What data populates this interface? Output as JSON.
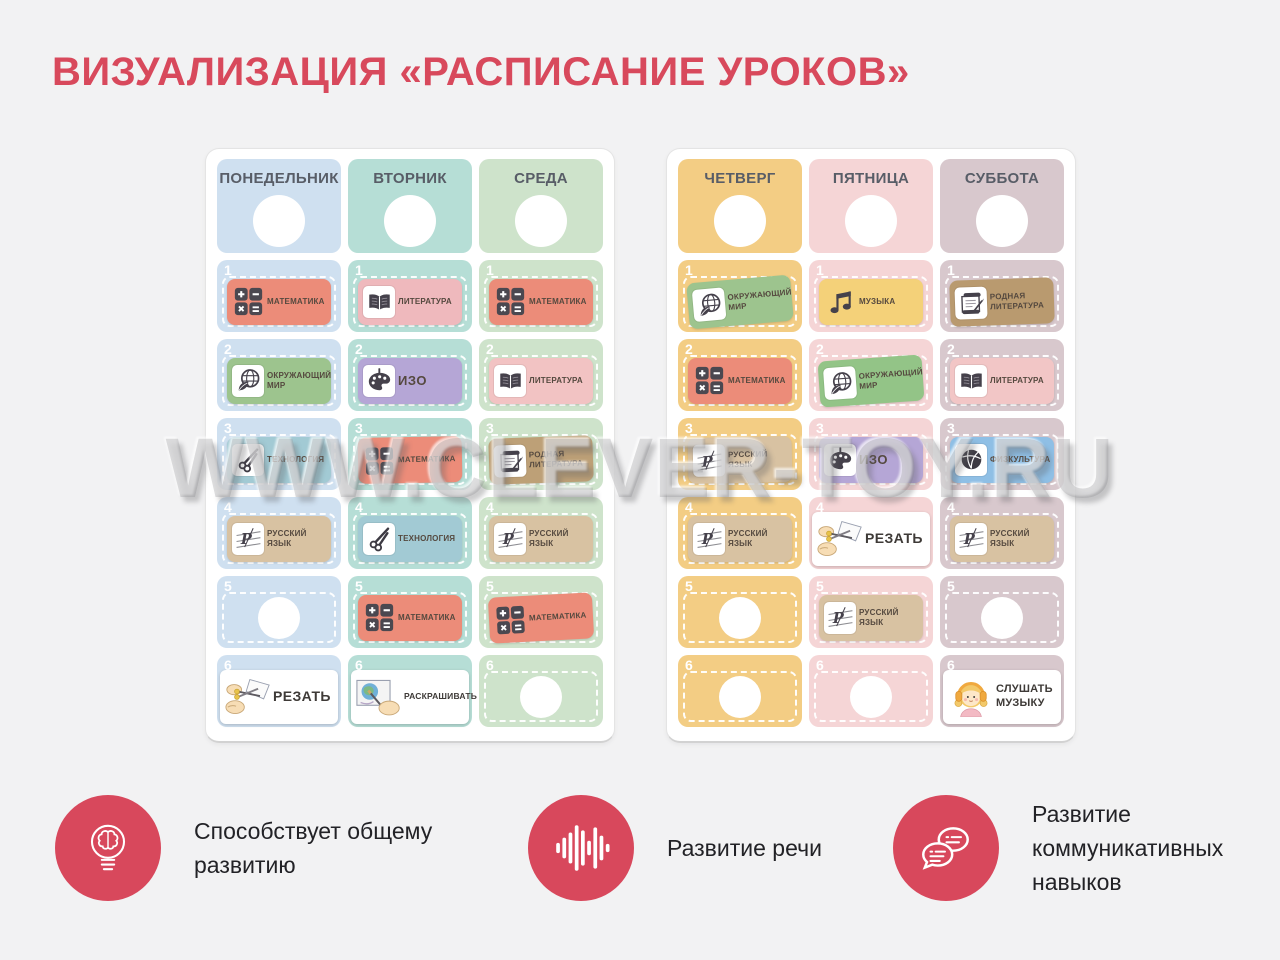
{
  "title": "ВИЗУАЛИЗАЦИЯ «РАСПИСАНИЕ УРОКОВ»",
  "watermark": "WWW.CLEVER-TOY.RU",
  "colors": {
    "accent_red": "#d8495c",
    "background": "#f2f2f3",
    "panel": "#ffffff"
  },
  "panels": [
    {
      "days": [
        {
          "name": "ПОНЕДЕЛЬНИК",
          "color": "#cfe0f0",
          "slots": [
            {
              "n": "1",
              "type": "subject",
              "label": "МАТЕМАТИКА",
              "icon": "calculator-icon",
              "color": "#ec8c79"
            },
            {
              "n": "2",
              "type": "subject",
              "label": "ОКРУЖАЮЩИЙ МИР",
              "icon": "globe-leaf-icon",
              "color": "#9dc48e"
            },
            {
              "n": "3",
              "type": "subject",
              "label": "ТЕХНОЛОГИЯ",
              "icon": "scissors-icon",
              "color": "#a2cad4"
            },
            {
              "n": "4",
              "type": "subject",
              "label": "РУССКИЙ ЯЗЫК",
              "icon": "writing-icon",
              "color": "#d8c2a2"
            },
            {
              "n": "5",
              "type": "empty"
            },
            {
              "n": "6",
              "type": "activity",
              "label": "РЕЗАТЬ",
              "icon": "cutting-hands-icon"
            }
          ]
        },
        {
          "name": "ВТОРНИК",
          "color": "#b6ded6",
          "slots": [
            {
              "n": "1",
              "type": "subject",
              "label": "ЛИТЕРАТУРА",
              "icon": "book-icon",
              "color": "#efb9bd"
            },
            {
              "n": "2",
              "type": "subject",
              "label": "ИЗО",
              "icon": "palette-icon",
              "color": "#b5a6d6"
            },
            {
              "n": "3",
              "type": "subject",
              "label": "МАТЕМАТИКА",
              "icon": "calculator-icon",
              "color": "#ec8c79",
              "tilt": -1
            },
            {
              "n": "4",
              "type": "subject",
              "label": "ТЕХНОЛОГИЯ",
              "icon": "scissors-icon",
              "color": "#a2cad4"
            },
            {
              "n": "5",
              "type": "subject",
              "label": "МАТЕМАТИКА",
              "icon": "calculator-icon",
              "color": "#ec8c79"
            },
            {
              "n": "6",
              "type": "activity",
              "label": "РАСКРАШИВАТЬ",
              "icon": "coloring-hand-icon"
            }
          ]
        },
        {
          "name": "СРЕДА",
          "color": "#cee3cb",
          "slots": [
            {
              "n": "1",
              "type": "subject",
              "label": "МАТЕМАТИКА",
              "icon": "calculator-icon",
              "color": "#ec8c79"
            },
            {
              "n": "2",
              "type": "subject",
              "label": "ЛИТЕРАТУРА",
              "icon": "book-icon",
              "color": "#f2c3c3"
            },
            {
              "n": "3",
              "type": "subject",
              "label": "РОДНАЯ ЛИТЕРАТУРА",
              "icon": "scroll-pen-icon",
              "color": "#bda077",
              "tilt": -2
            },
            {
              "n": "4",
              "type": "subject",
              "label": "РУССКИЙ ЯЗЫК",
              "icon": "writing-icon",
              "color": "#d8c2a2"
            },
            {
              "n": "5",
              "type": "subject",
              "label": "МАТЕМАТИКА",
              "icon": "calculator-icon",
              "color": "#ec8c79",
              "tilt": -3
            },
            {
              "n": "6",
              "type": "empty"
            }
          ]
        }
      ]
    },
    {
      "days": [
        {
          "name": "ЧЕТВЕРГ",
          "color": "#f3cd84",
          "slots": [
            {
              "n": "1",
              "type": "subject",
              "label": "ОКРУЖАЮЩИЙ МИР",
              "icon": "globe-leaf-icon",
              "color": "#9dc48e",
              "tilt": -5
            },
            {
              "n": "2",
              "type": "subject",
              "label": "МАТЕМАТИКА",
              "icon": "calculator-icon",
              "color": "#ec8c79"
            },
            {
              "n": "3",
              "type": "subject",
              "label": "РУССКИЙ ЯЗЫК",
              "icon": "writing-icon",
              "color": "#d8c2a2",
              "tilt": -1
            },
            {
              "n": "4",
              "type": "subject",
              "label": "РУССКИЙ ЯЗЫК",
              "icon": "writing-icon",
              "color": "#d8c2a2"
            },
            {
              "n": "5",
              "type": "empty"
            },
            {
              "n": "6",
              "type": "empty"
            }
          ]
        },
        {
          "name": "ПЯТНИЦА",
          "color": "#f5d5d6",
          "slots": [
            {
              "n": "1",
              "type": "subject",
              "label": "МУЗЫКА",
              "icon": "music-note-icon",
              "color": "#f4d179"
            },
            {
              "n": "2",
              "type": "subject",
              "label": "ОКРУЖАЮЩИЙ МИР",
              "icon": "globe-leaf-icon",
              "color": "#93c487",
              "tilt": -4
            },
            {
              "n": "3",
              "type": "subject",
              "label": "ИЗО",
              "icon": "palette-icon",
              "color": "#b5a6d6"
            },
            {
              "n": "4",
              "type": "activity",
              "label": "РЕЗАТЬ",
              "icon": "cutting-hands-icon"
            },
            {
              "n": "5",
              "type": "subject",
              "label": "РУССКИЙ ЯЗЫК",
              "icon": "writing-icon",
              "color": "#d8c2a2"
            },
            {
              "n": "6",
              "type": "empty"
            }
          ]
        },
        {
          "name": "СУББОТА",
          "color": "#d8c8cd",
          "slots": [
            {
              "n": "1",
              "type": "subject",
              "label": "РОДНАЯ ЛИТЕРАТУРА",
              "icon": "scroll-pen-icon",
              "color": "#b99a6f",
              "tilt": -2
            },
            {
              "n": "2",
              "type": "subject",
              "label": "ЛИТЕРАТУРА",
              "icon": "book-icon",
              "color": "#f2c6c6"
            },
            {
              "n": "3",
              "type": "subject",
              "label": "ФИЗКУЛЬТУРА",
              "icon": "volleyball-icon",
              "color": "#8fbfe5"
            },
            {
              "n": "4",
              "type": "subject",
              "label": "РУССКИЙ ЯЗЫК",
              "icon": "writing-icon",
              "color": "#d8c2a2"
            },
            {
              "n": "5",
              "type": "empty"
            },
            {
              "n": "6",
              "type": "activity",
              "label": "СЛУШАТЬ МУЗЫКУ",
              "icon": "girl-headphones-icon"
            }
          ]
        }
      ]
    }
  ],
  "features": [
    {
      "icon": "bulb-brain-icon",
      "label": "Способствует общему развитию"
    },
    {
      "icon": "sound-wave-icon",
      "label": "Развитие речи"
    },
    {
      "icon": "chat-bubbles-icon",
      "label": "Развитие коммуникативных навыков"
    }
  ]
}
